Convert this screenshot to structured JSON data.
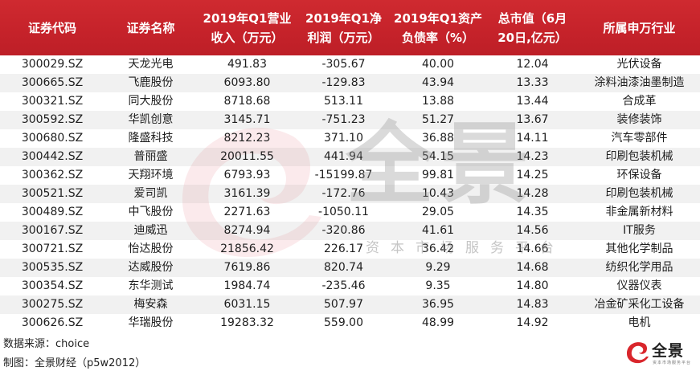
{
  "table": {
    "headers": [
      {
        "line1": "证券代码",
        "line2": ""
      },
      {
        "line1": "证券名称",
        "line2": ""
      },
      {
        "line1": "2019年Q1营业",
        "line2": "收入（万元）"
      },
      {
        "line1": "2019年Q1净",
        "line2": "利润（万元）"
      },
      {
        "line1": "2019年Q1资产",
        "line2": "负债率（%）"
      },
      {
        "line1": "总市值（6月",
        "line2": "20日,亿元）"
      },
      {
        "line1": "所属申万行业",
        "line2": ""
      }
    ],
    "rows": [
      [
        "300029.SZ",
        "天龙光电",
        "491.83",
        "-305.67",
        "40.00",
        "12.04",
        "光伏设备"
      ],
      [
        "300665.SZ",
        "飞鹿股份",
        "6093.80",
        "-129.83",
        "43.94",
        "13.33",
        "涂料油漆油墨制造"
      ],
      [
        "300321.SZ",
        "同大股份",
        "8718.68",
        "513.11",
        "13.88",
        "13.44",
        "合成革"
      ],
      [
        "300592.SZ",
        "华凯创意",
        "3145.71",
        "-751.23",
        "51.27",
        "13.67",
        "装修装饰"
      ],
      [
        "300680.SZ",
        "隆盛科技",
        "8212.23",
        "371.10",
        "36.88",
        "14.11",
        "汽车零部件"
      ],
      [
        "300442.SZ",
        "普丽盛",
        "20011.55",
        "441.94",
        "54.15",
        "14.23",
        "印刷包装机械"
      ],
      [
        "300362.SZ",
        "天翔环境",
        "6793.93",
        "-15199.87",
        "99.81",
        "14.25",
        "环保设备"
      ],
      [
        "300521.SZ",
        "爱司凯",
        "3161.39",
        "-172.76",
        "10.43",
        "14.28",
        "印刷包装机械"
      ],
      [
        "300489.SZ",
        "中飞股份",
        "2271.63",
        "-1050.11",
        "29.05",
        "14.35",
        "非金属新材料"
      ],
      [
        "300167.SZ",
        "迪威迅",
        "8274.94",
        "-320.86",
        "41.61",
        "14.56",
        "IT服务"
      ],
      [
        "300721.SZ",
        "怡达股份",
        "21856.42",
        "226.17",
        "36.42",
        "14.66",
        "其他化学制品"
      ],
      [
        "300535.SZ",
        "达威股份",
        "7619.86",
        "820.74",
        "9.29",
        "14.68",
        "纺织化学用品"
      ],
      [
        "300354.SZ",
        "东华测试",
        "1984.74",
        "-235.46",
        "9.35",
        "14.80",
        "仪器仪表"
      ],
      [
        "300275.SZ",
        "梅安森",
        "6031.15",
        "507.97",
        "36.95",
        "14.83",
        "冶金矿采化工设备"
      ],
      [
        "300626.SZ",
        "华瑞股份",
        "19283.32",
        "559.00",
        "48.99",
        "14.92",
        "电机"
      ]
    ]
  },
  "footer": {
    "source": "数据来源：choice",
    "credit": "制图：全景财经（p5w2012）"
  },
  "watermark": {
    "brand": "全景",
    "tagline": "资本市场服务平台"
  },
  "logo": {
    "brand": "全景",
    "tagline": "资本市场服务平台"
  },
  "colors": {
    "header_bg": "#c8232b",
    "header_text": "#ffffff",
    "row_alt": "#ebebeb",
    "logo_red": "#d9262c"
  }
}
